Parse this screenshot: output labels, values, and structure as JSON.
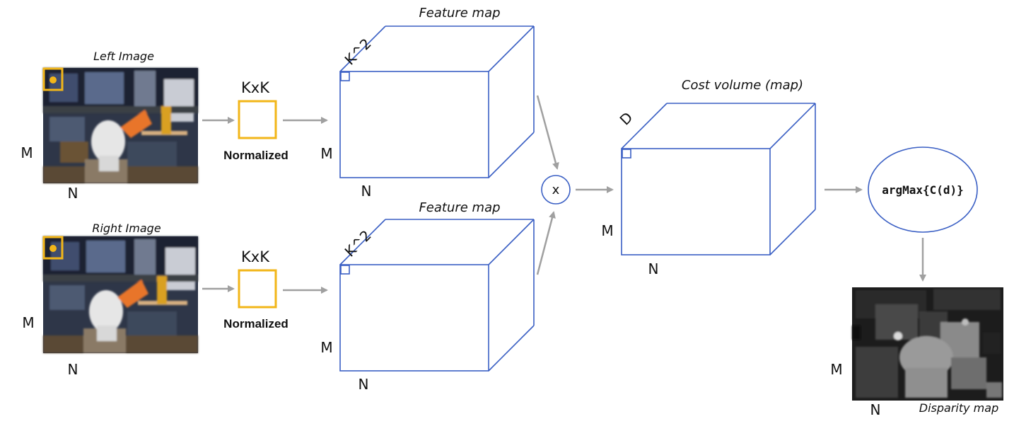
{
  "left_image": {
    "title": "Left Image",
    "dim_m": "M",
    "dim_n": "N"
  },
  "right_image": {
    "title": "Right Image",
    "dim_m": "M",
    "dim_n": "N"
  },
  "kernel_top": {
    "label": "KxK",
    "caption": "Normalized"
  },
  "kernel_bottom": {
    "label": "KxK",
    "caption": "Normalized"
  },
  "feature_map_top": {
    "title": "Feature map",
    "depth": "K^2",
    "dim_m": "M",
    "dim_n": "N"
  },
  "feature_map_bottom": {
    "title": "Feature map",
    "depth": "K^2",
    "dim_m": "M",
    "dim_n": "N"
  },
  "multiply": {
    "symbol": "x"
  },
  "cost_volume": {
    "title": "Cost volume (map)",
    "depth": "D",
    "dim_m": "M",
    "dim_n": "N"
  },
  "argmax": {
    "label": "argMax{C(d)}"
  },
  "disparity": {
    "title": "Disparity map",
    "dim_m": "M",
    "dim_n": "N"
  },
  "colors": {
    "cube_stroke": "#3a5fc4",
    "kernel": "#f2b619",
    "arrow": "#a0a0a0"
  }
}
